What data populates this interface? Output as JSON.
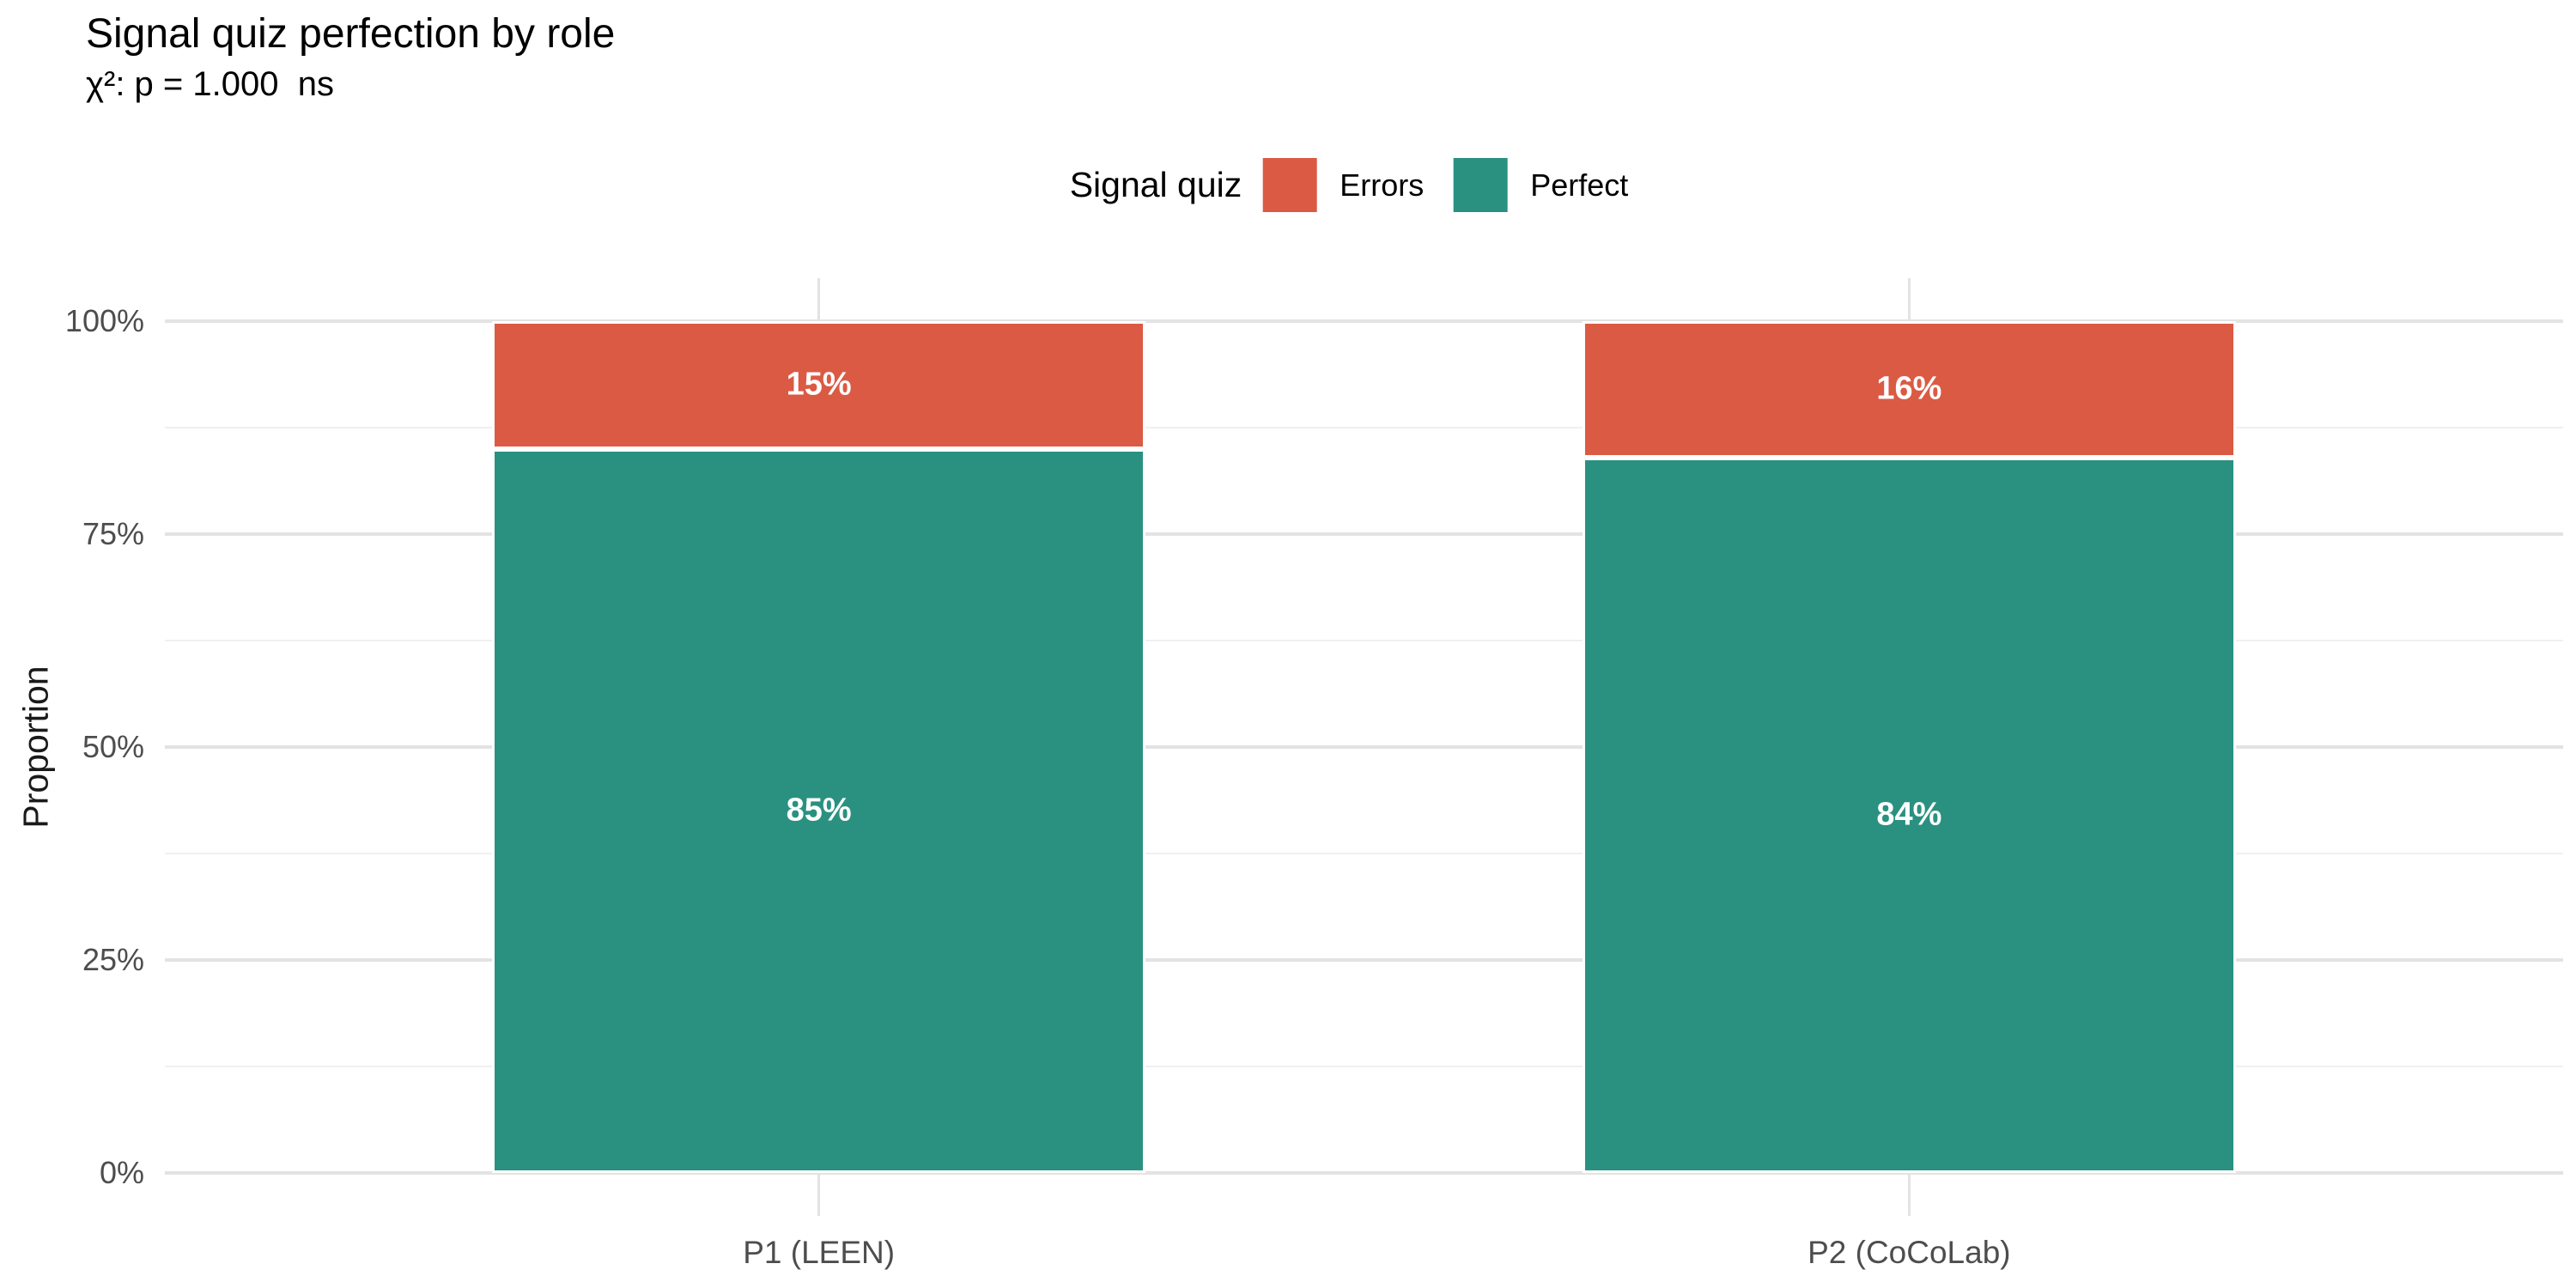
{
  "chart_data": {
    "type": "bar",
    "stacked": true,
    "orientation": "vertical",
    "title": "Signal quiz perfection by role",
    "subtitle": "χ²: p = 1.000  ns",
    "legend_title": "Signal quiz",
    "legend_position": "top",
    "categories": [
      "P1 (LEEN)",
      "P2 (CoCoLab)"
    ],
    "series": [
      {
        "name": "Errors",
        "color": "#db5a44",
        "values": [
          0.15,
          0.16
        ],
        "labels": [
          "15%",
          "16%"
        ]
      },
      {
        "name": "Perfect",
        "color": "#2a9181",
        "values": [
          0.85,
          0.84
        ],
        "labels": [
          "85%",
          "84%"
        ]
      }
    ],
    "ylabel": "Proportion",
    "xlabel": "",
    "ylim": [
      0,
      1
    ],
    "yticks": [
      {
        "value": 0.0,
        "label": "0%"
      },
      {
        "value": 0.25,
        "label": "25%"
      },
      {
        "value": 0.5,
        "label": "50%"
      },
      {
        "value": 0.75,
        "label": "75%"
      },
      {
        "value": 1.0,
        "label": "100%"
      }
    ],
    "grid": true,
    "background": "#ffffff",
    "label_text_color": "#ffffff"
  }
}
